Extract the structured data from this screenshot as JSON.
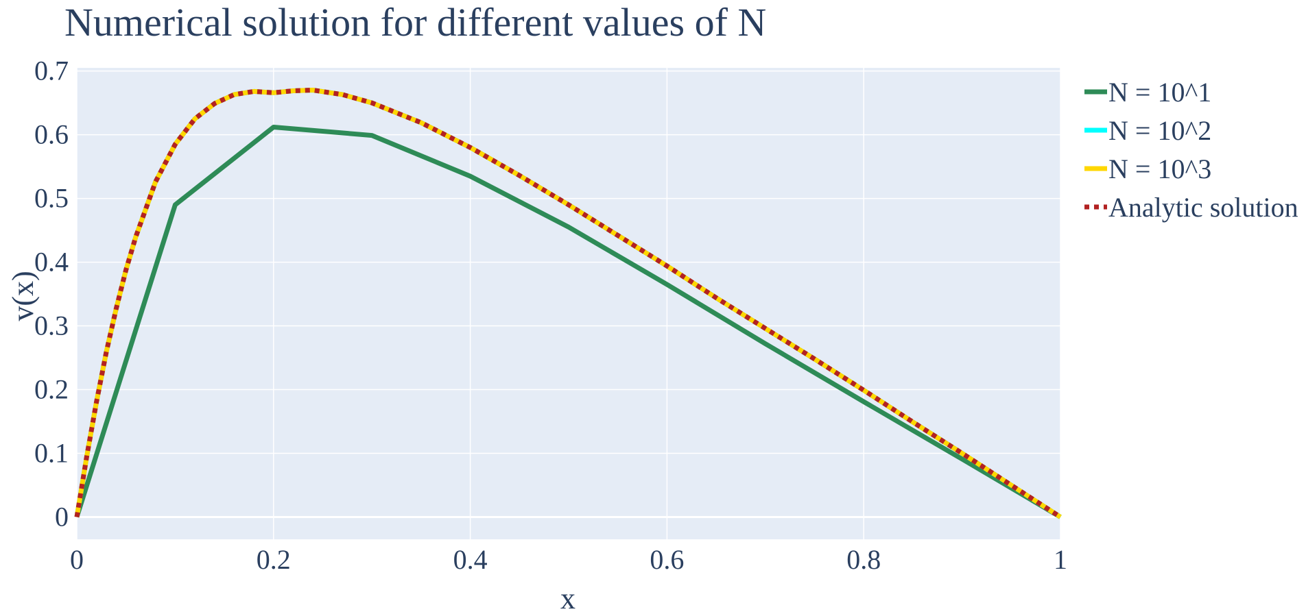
{
  "chart_data": {
    "type": "line",
    "title": "Numerical solution for different values of N",
    "xlabel": "x",
    "ylabel": "v(x)",
    "xlim": [
      0,
      1
    ],
    "ylim": [
      -0.035,
      0.705
    ],
    "x_ticks": [
      0,
      0.2,
      0.4,
      0.6,
      0.8,
      1
    ],
    "x_tick_labels": [
      "0",
      "0.2",
      "0.4",
      "0.6",
      "0.8",
      "1"
    ],
    "y_ticks": [
      0,
      0.1,
      0.2,
      0.3,
      0.4,
      0.5,
      0.6,
      0.7
    ],
    "y_tick_labels": [
      "0",
      "0.1",
      "0.2",
      "0.3",
      "0.4",
      "0.5",
      "0.6",
      "0.7"
    ],
    "grid": true,
    "plot_background": "#E5ECF6",
    "legend_position": "right",
    "series": [
      {
        "name": "N = 10^1",
        "color": "#2E8B57",
        "dash": "solid",
        "x": [
          0,
          0.1,
          0.2,
          0.3,
          0.4,
          0.5,
          0.6,
          0.7,
          0.8,
          0.9,
          1.0
        ],
        "y": [
          0,
          0.49,
          0.612,
          0.599,
          0.535,
          0.455,
          0.365,
          0.272,
          0.181,
          0.091,
          0
        ]
      },
      {
        "name": "N = 10^2",
        "color": "#00FFFF",
        "dash": "solid",
        "x": [
          0,
          0.01,
          0.02,
          0.03,
          0.04,
          0.05,
          0.06,
          0.08,
          0.1,
          0.12,
          0.14,
          0.16,
          0.18,
          0.2,
          0.22,
          0.24,
          0.27,
          0.3,
          0.35,
          0.4,
          0.45,
          0.5,
          0.55,
          0.6,
          0.65,
          0.7,
          0.75,
          0.8,
          0.85,
          0.9,
          0.95,
          1.0
        ],
        "y": [
          0,
          0.094,
          0.181,
          0.259,
          0.327,
          0.388,
          0.44,
          0.526,
          0.585,
          0.625,
          0.649,
          0.663,
          0.668,
          0.666,
          0.669,
          0.67,
          0.663,
          0.65,
          0.619,
          0.58,
          0.536,
          0.49,
          0.442,
          0.394,
          0.344,
          0.296,
          0.248,
          0.199,
          0.149,
          0.1,
          0.05,
          0
        ]
      },
      {
        "name": "N = 10^3",
        "color": "#FFD700",
        "dash": "solid",
        "x": [
          0,
          0.01,
          0.02,
          0.03,
          0.04,
          0.05,
          0.06,
          0.08,
          0.1,
          0.12,
          0.14,
          0.16,
          0.18,
          0.2,
          0.22,
          0.24,
          0.27,
          0.3,
          0.35,
          0.4,
          0.45,
          0.5,
          0.55,
          0.6,
          0.65,
          0.7,
          0.75,
          0.8,
          0.85,
          0.9,
          0.95,
          1.0
        ],
        "y": [
          0,
          0.094,
          0.181,
          0.259,
          0.327,
          0.388,
          0.44,
          0.526,
          0.585,
          0.625,
          0.649,
          0.663,
          0.668,
          0.666,
          0.669,
          0.67,
          0.663,
          0.65,
          0.619,
          0.58,
          0.536,
          0.49,
          0.442,
          0.394,
          0.344,
          0.296,
          0.248,
          0.199,
          0.149,
          0.1,
          0.05,
          0
        ]
      },
      {
        "name": "Analytic solution",
        "color": "#B22222",
        "dash": "dot",
        "x": [
          0,
          0.01,
          0.02,
          0.03,
          0.04,
          0.05,
          0.06,
          0.08,
          0.1,
          0.12,
          0.14,
          0.16,
          0.18,
          0.2,
          0.22,
          0.24,
          0.27,
          0.3,
          0.35,
          0.4,
          0.45,
          0.5,
          0.55,
          0.6,
          0.65,
          0.7,
          0.75,
          0.8,
          0.85,
          0.9,
          0.95,
          1.0
        ],
        "y": [
          0,
          0.094,
          0.181,
          0.259,
          0.327,
          0.388,
          0.44,
          0.526,
          0.585,
          0.625,
          0.649,
          0.663,
          0.668,
          0.666,
          0.669,
          0.67,
          0.663,
          0.65,
          0.619,
          0.58,
          0.536,
          0.49,
          0.442,
          0.394,
          0.344,
          0.296,
          0.248,
          0.199,
          0.149,
          0.1,
          0.05,
          0
        ]
      }
    ]
  }
}
